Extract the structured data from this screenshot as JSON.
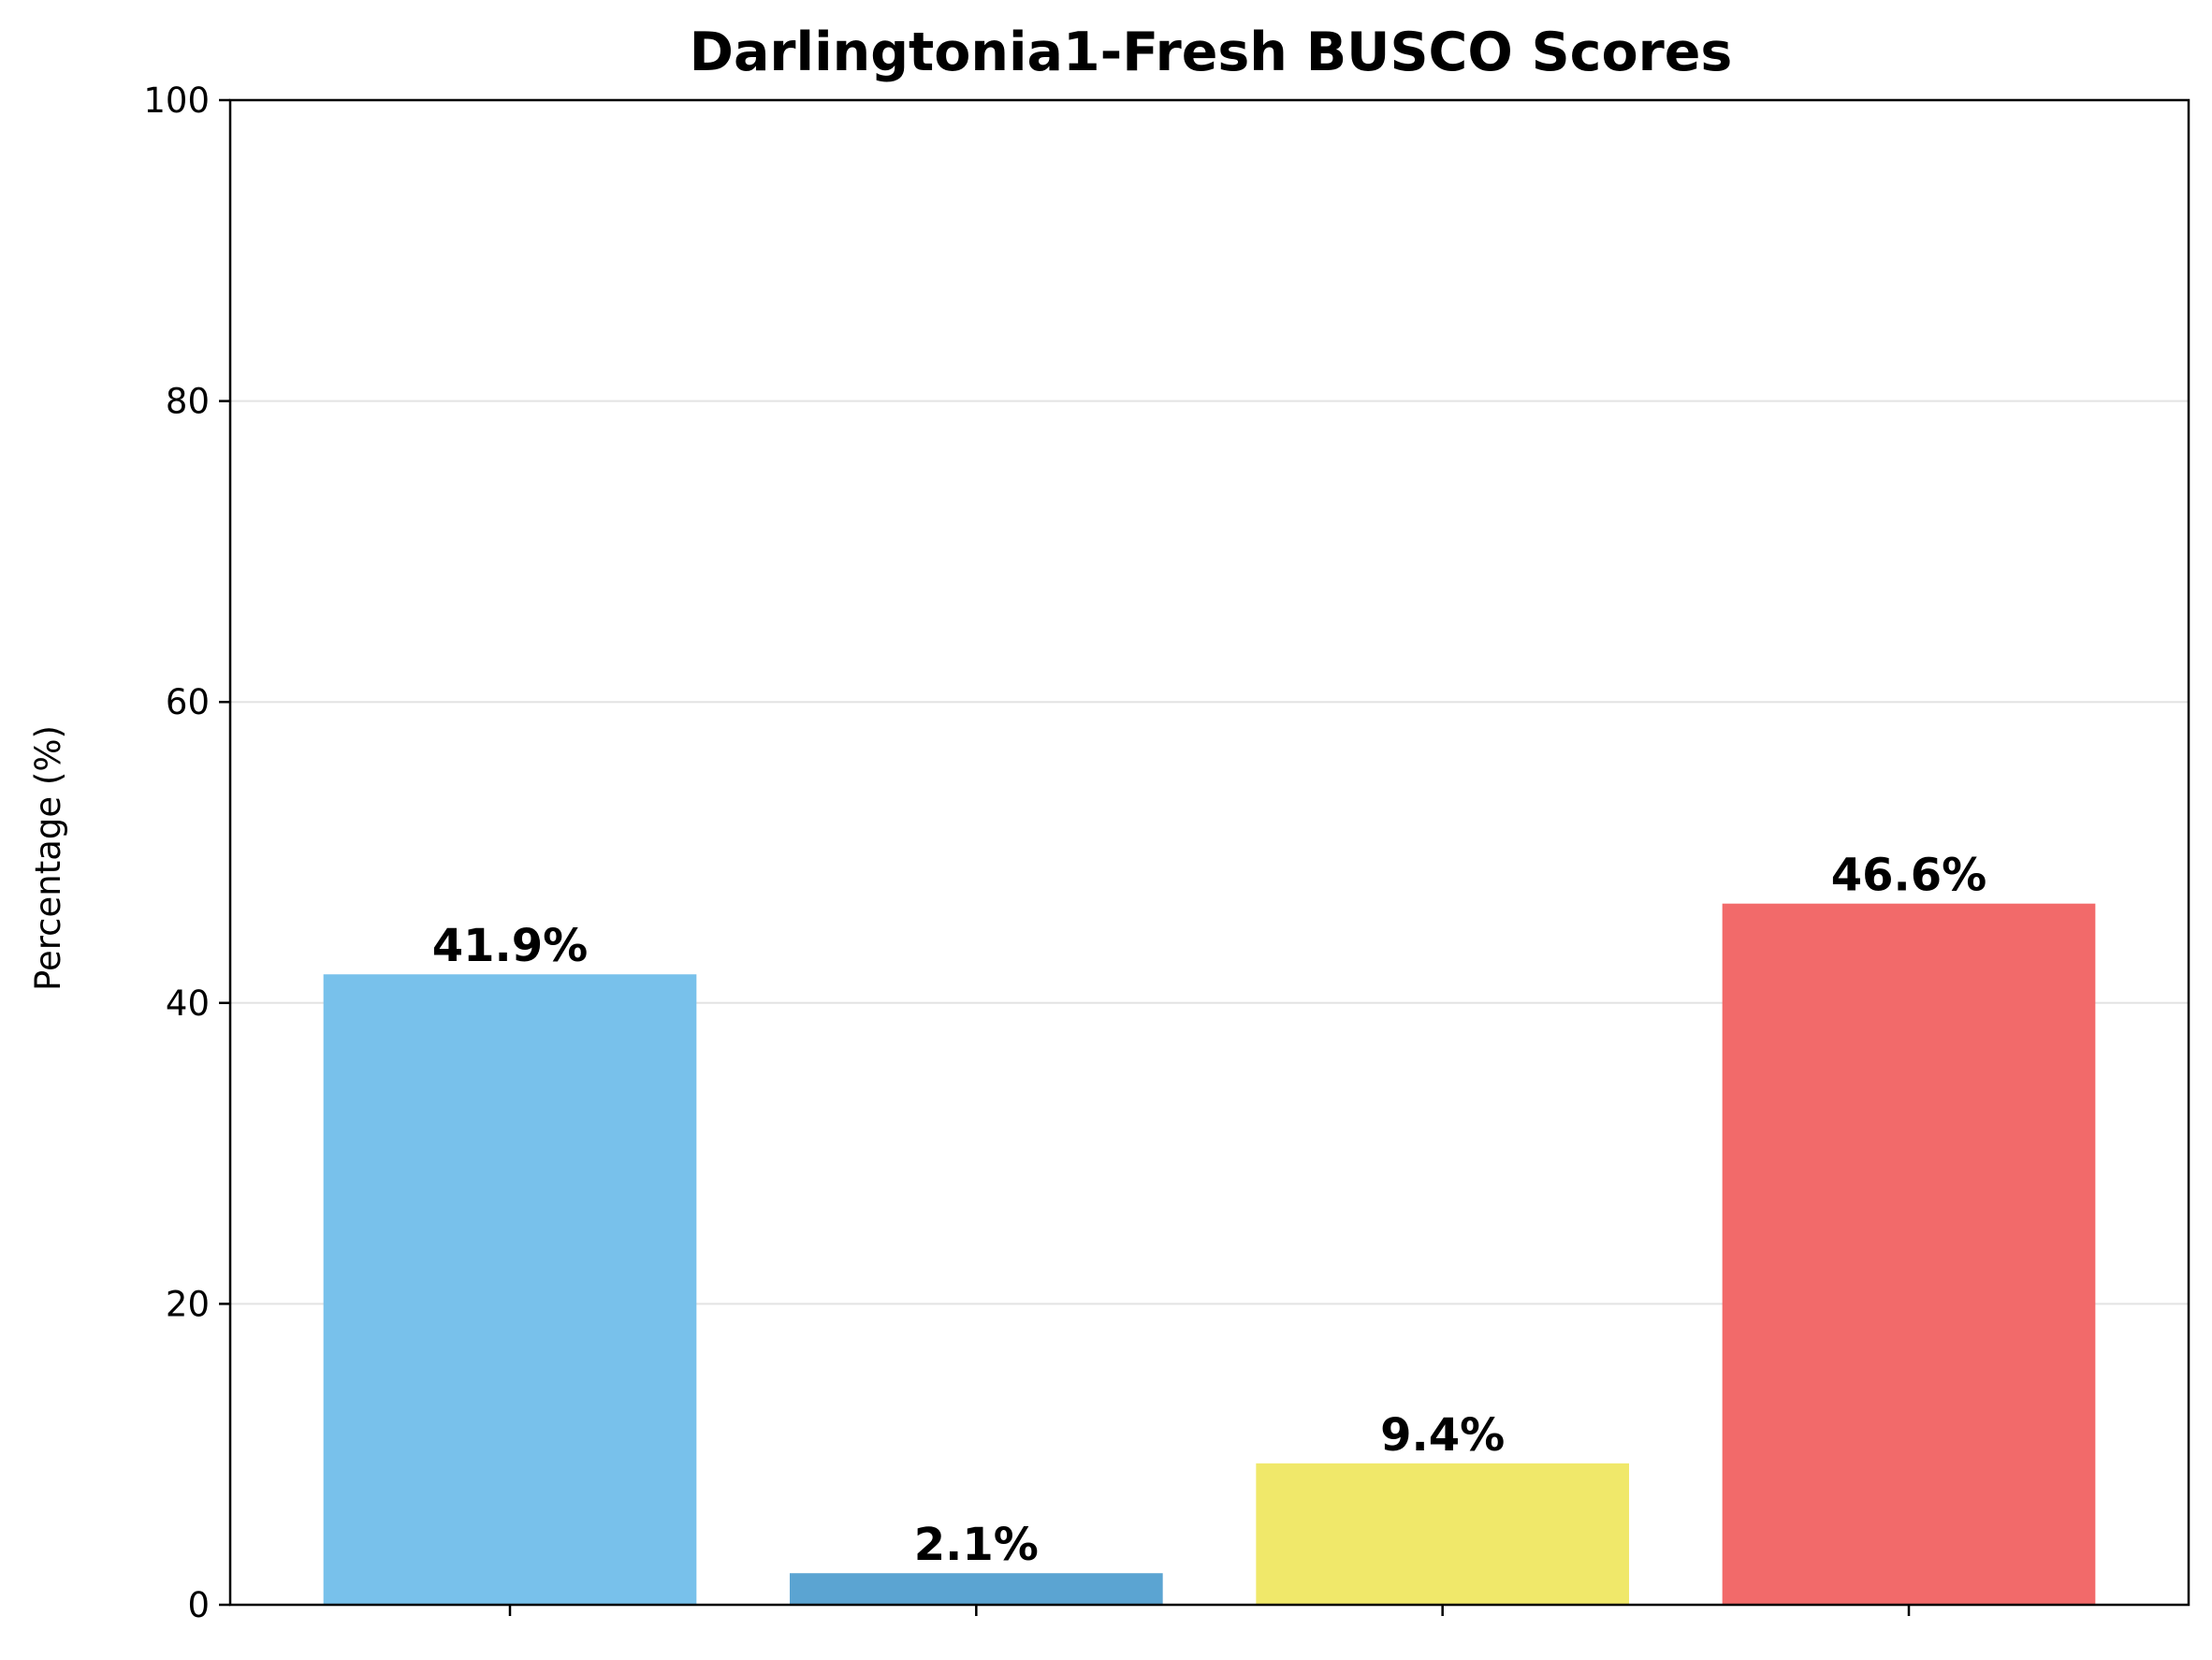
{
  "chart_data": {
    "type": "bar",
    "title": "Darlingtonia1-Fresh BUSCO Scores",
    "xlabel": "",
    "ylabel": "Percentage (%)",
    "ylim": [
      0,
      100
    ],
    "yticks": [
      0,
      20,
      40,
      60,
      80,
      100
    ],
    "grid": "y",
    "values": [
      41.9,
      2.1,
      9.4,
      46.6
    ],
    "value_labels": [
      "41.9%",
      "2.1%",
      "9.4%",
      "46.6%"
    ],
    "colors": [
      "#78C1EB",
      "#5BA4D2",
      "#F0E86A",
      "#F26A6A"
    ]
  }
}
